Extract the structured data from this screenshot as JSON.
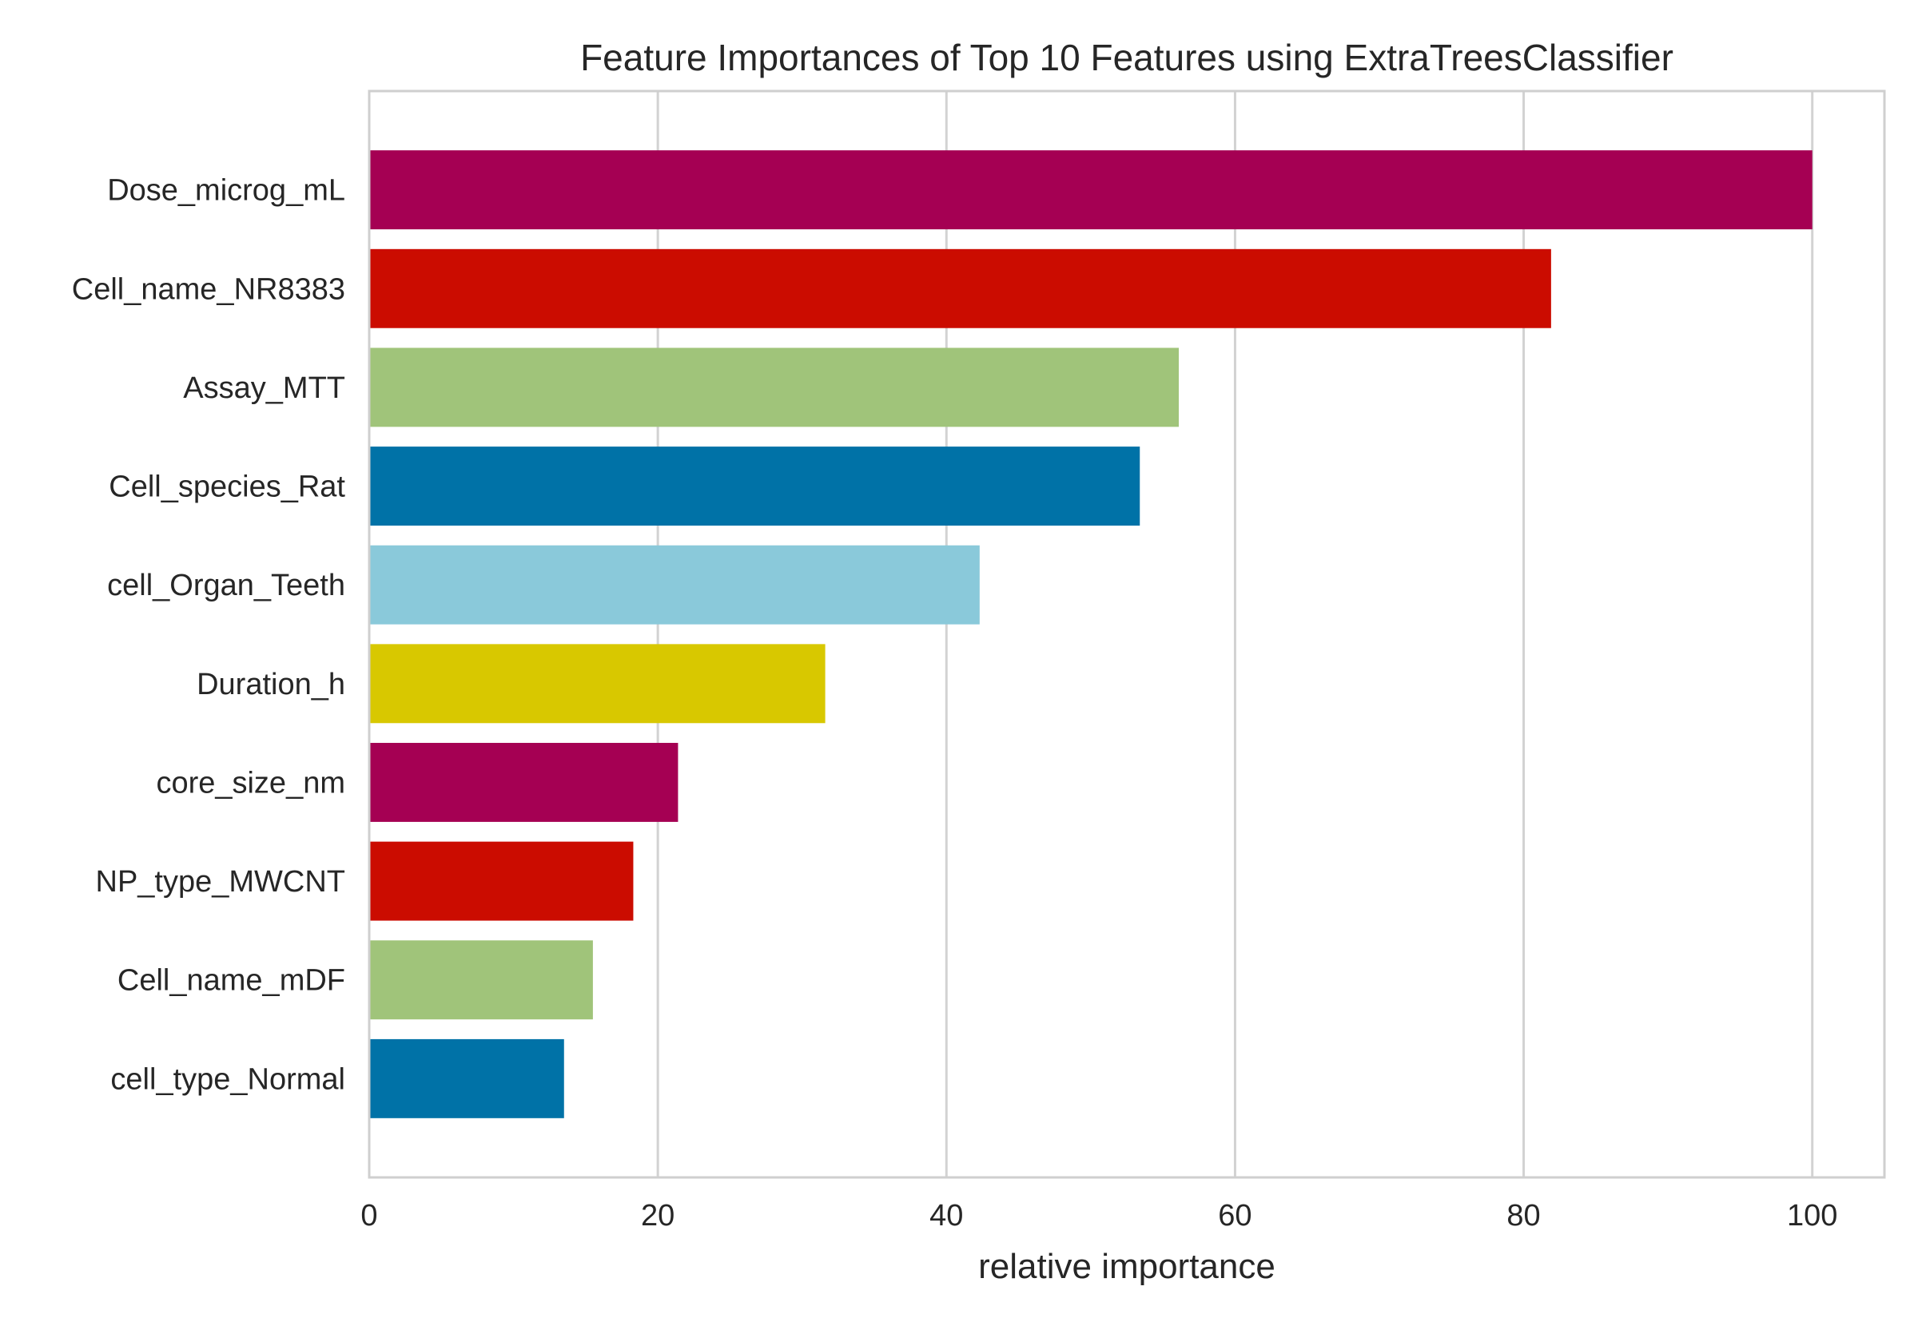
{
  "chart_data": {
    "type": "bar",
    "orientation": "horizontal",
    "title": "Feature Importances of Top 10 Features using ExtraTreesClassifier",
    "xlabel": "relative importance",
    "ylabel": "",
    "xlim": [
      0,
      105
    ],
    "xticks": [
      0,
      20,
      40,
      60,
      80,
      100
    ],
    "grid": "vertical",
    "categories": [
      "Dose_microg_mL",
      "Cell_name_NR8383",
      "Assay_MTT",
      "Cell_species_Rat",
      "cell_Organ_Teeth",
      "Duration_h",
      "core_size_nm",
      "NP_type_MWCNT",
      "Cell_name_mDF",
      "cell_type_Normal"
    ],
    "values": [
      100,
      81.9,
      56.1,
      53.4,
      42.3,
      31.6,
      21.4,
      18.3,
      15.5,
      13.5
    ],
    "colors": [
      "#a50053",
      "#cb0c00",
      "#a0c47a",
      "#0072a7",
      "#8ac9da",
      "#d8c800",
      "#a50053",
      "#cb0c00",
      "#a0c47a",
      "#0072a7"
    ]
  }
}
